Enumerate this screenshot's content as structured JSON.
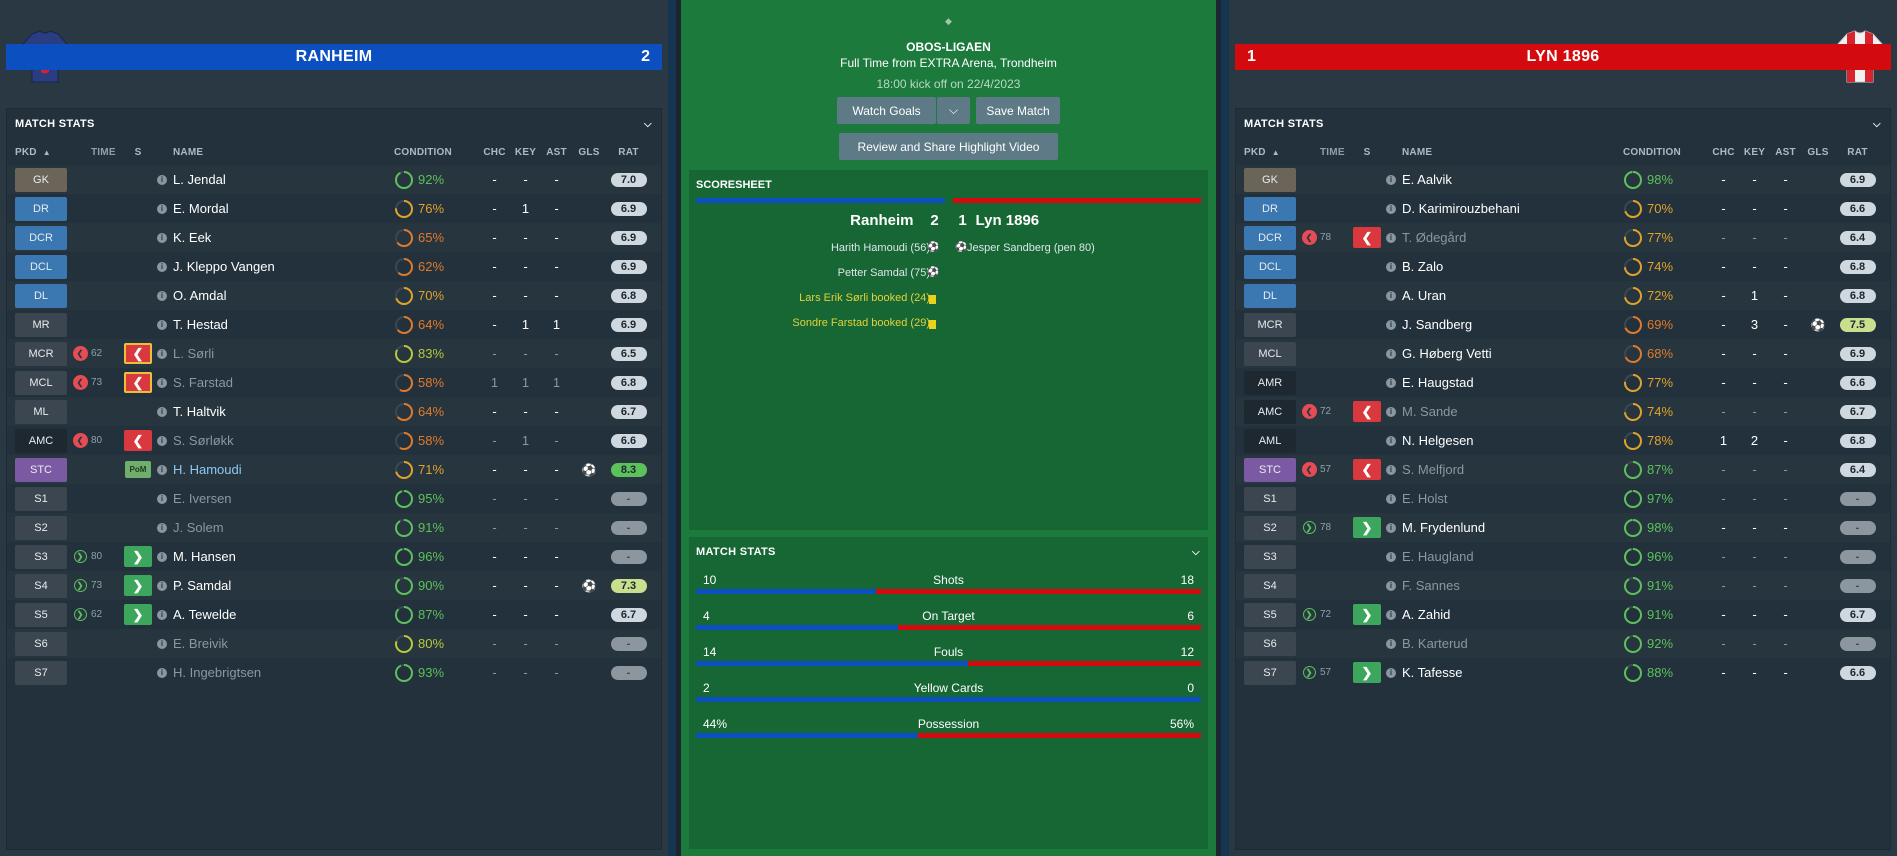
{
  "home": {
    "name": "RANHEIM",
    "score": "2",
    "panel_title": "MATCH STATS",
    "columns": {
      "pkd": "PKD",
      "time": "TIME",
      "s": "S",
      "name": "NAME",
      "condition": "CONDITION",
      "chc": "CHC",
      "key": "KEY",
      "ast": "AST",
      "gls": "GLS",
      "rat": "RAT"
    },
    "players": [
      {
        "pos": "GK",
        "pos_color": "#6b6458",
        "name": "L. Jendal",
        "cond": "92%",
        "cond_val": 92,
        "chc": "-",
        "key": "-",
        "ast": "-",
        "rat": "7.0",
        "sub": "",
        "time": "",
        "dim": false
      },
      {
        "pos": "DR",
        "pos_color": "#3b77b0",
        "name": "E. Mordal",
        "cond": "76%",
        "cond_val": 76,
        "chc": "-",
        "key": "1",
        "ast": "-",
        "rat": "6.9",
        "sub": "",
        "time": "",
        "dim": false
      },
      {
        "pos": "DCR",
        "pos_color": "#3b77b0",
        "name": "K. Eek",
        "cond": "65%",
        "cond_val": 65,
        "chc": "-",
        "key": "-",
        "ast": "-",
        "rat": "6.9",
        "sub": "",
        "time": "",
        "dim": false
      },
      {
        "pos": "DCL",
        "pos_color": "#3b77b0",
        "name": "J. Kleppo Vangen",
        "cond": "62%",
        "cond_val": 62,
        "chc": "-",
        "key": "-",
        "ast": "-",
        "rat": "6.9",
        "sub": "",
        "time": "",
        "dim": false
      },
      {
        "pos": "DL",
        "pos_color": "#3b77b0",
        "name": "O. Amdal",
        "cond": "70%",
        "cond_val": 70,
        "chc": "-",
        "key": "-",
        "ast": "-",
        "rat": "6.8",
        "sub": "",
        "time": "",
        "dim": false
      },
      {
        "pos": "MR",
        "pos_color": "#3b4650",
        "name": "T. Hestad",
        "cond": "64%",
        "cond_val": 64,
        "chc": "-",
        "key": "1",
        "ast": "1",
        "rat": "6.9",
        "sub": "",
        "time": "",
        "dim": false
      },
      {
        "pos": "MCR",
        "pos_color": "#3b4650",
        "name": "L. Sørli",
        "cond": "83%",
        "cond_val": 83,
        "chc": "-",
        "key": "-",
        "ast": "-",
        "rat": "6.5",
        "sub": "outb",
        "time": "62",
        "dim": true
      },
      {
        "pos": "MCL",
        "pos_color": "#3b4650",
        "name": "S. Farstad",
        "cond": "58%",
        "cond_val": 58,
        "chc": "1",
        "key": "1",
        "ast": "1",
        "rat": "6.8",
        "sub": "outb",
        "time": "73",
        "dim": true
      },
      {
        "pos": "ML",
        "pos_color": "#3b4650",
        "name": "T. Haltvik",
        "cond": "64%",
        "cond_val": 64,
        "chc": "-",
        "key": "-",
        "ast": "-",
        "rat": "6.7",
        "sub": "",
        "time": "",
        "dim": false
      },
      {
        "pos": "AMC",
        "pos_color": "#1e2830",
        "name": "S. Sørløkk",
        "cond": "58%",
        "cond_val": 58,
        "chc": "-",
        "key": "1",
        "ast": "-",
        "rat": "6.6",
        "sub": "out",
        "time": "80",
        "dim": true
      },
      {
        "pos": "STC",
        "pos_color": "#7b5aa3",
        "name": "H. Hamoudi",
        "cond": "71%",
        "cond_val": 71,
        "chc": "-",
        "key": "-",
        "ast": "-",
        "rat": "8.3",
        "rat_class": "high",
        "sub": "pom",
        "pom": "PoM",
        "goal": true,
        "time": "",
        "dim": false,
        "hl": true
      },
      {
        "pos": "S1",
        "pos_color": "#3b4650",
        "name": "E. Iversen",
        "cond": "95%",
        "cond_val": 95,
        "chc": "-",
        "key": "-",
        "ast": "-",
        "rat": "-",
        "rat_class": "none",
        "sub": "",
        "time": "",
        "dim": true
      },
      {
        "pos": "S2",
        "pos_color": "#3b4650",
        "name": "J. Solem",
        "cond": "91%",
        "cond_val": 91,
        "chc": "-",
        "key": "-",
        "ast": "-",
        "rat": "-",
        "rat_class": "none",
        "sub": "",
        "time": "",
        "dim": true
      },
      {
        "pos": "S3",
        "pos_color": "#3b4650",
        "name": "M. Hansen",
        "cond": "96%",
        "cond_val": 96,
        "chc": "-",
        "key": "-",
        "ast": "-",
        "rat": "-",
        "rat_class": "none",
        "sub": "in",
        "time": "80",
        "dim": false
      },
      {
        "pos": "S4",
        "pos_color": "#3b4650",
        "name": "P. Samdal",
        "cond": "90%",
        "cond_val": 90,
        "chc": "-",
        "key": "-",
        "ast": "-",
        "rat": "7.3",
        "rat_class": "med",
        "sub": "in",
        "time": "73",
        "goal": true,
        "dim": false
      },
      {
        "pos": "S5",
        "pos_color": "#3b4650",
        "name": "A. Tewelde",
        "cond": "87%",
        "cond_val": 87,
        "chc": "-",
        "key": "-",
        "ast": "-",
        "rat": "6.7",
        "sub": "in",
        "time": "62",
        "dim": false
      },
      {
        "pos": "S6",
        "pos_color": "#3b4650",
        "name": "E. Breivik",
        "cond": "80%",
        "cond_val": 80,
        "chc": "-",
        "key": "-",
        "ast": "-",
        "rat": "-",
        "rat_class": "none",
        "sub": "",
        "time": "",
        "dim": true
      },
      {
        "pos": "S7",
        "pos_color": "#3b4650",
        "name": "H. Ingebrigtsen",
        "cond": "93%",
        "cond_val": 93,
        "chc": "-",
        "key": "-",
        "ast": "-",
        "rat": "-",
        "rat_class": "none",
        "sub": "",
        "time": "",
        "dim": true
      }
    ]
  },
  "away": {
    "name": "LYN 1896",
    "score": "1",
    "panel_title": "MATCH STATS",
    "columns": {
      "pkd": "PKD",
      "time": "TIME",
      "s": "S",
      "name": "NAME",
      "condition": "CONDITION",
      "chc": "CHC",
      "key": "KEY",
      "ast": "AST",
      "gls": "GLS",
      "rat": "RAT"
    },
    "players": [
      {
        "pos": "GK",
        "pos_color": "#6b6458",
        "name": "E. Aalvik",
        "cond": "98%",
        "cond_val": 98,
        "chc": "-",
        "key": "-",
        "ast": "-",
        "rat": "6.9",
        "sub": "",
        "time": "",
        "dim": false
      },
      {
        "pos": "DR",
        "pos_color": "#3b77b0",
        "name": "D. Karimirouzbehani",
        "cond": "70%",
        "cond_val": 70,
        "chc": "-",
        "key": "-",
        "ast": "-",
        "rat": "6.6",
        "sub": "",
        "time": "",
        "dim": false
      },
      {
        "pos": "DCR",
        "pos_color": "#3b77b0",
        "name": "T. Ødegård",
        "cond": "77%",
        "cond_val": 77,
        "chc": "-",
        "key": "-",
        "ast": "-",
        "rat": "6.4",
        "sub": "out",
        "time": "78",
        "dim": true
      },
      {
        "pos": "DCL",
        "pos_color": "#3b77b0",
        "name": "B. Zalo",
        "cond": "74%",
        "cond_val": 74,
        "chc": "-",
        "key": "-",
        "ast": "-",
        "rat": "6.8",
        "sub": "",
        "time": "",
        "dim": false
      },
      {
        "pos": "DL",
        "pos_color": "#3b77b0",
        "name": "A. Uran",
        "cond": "72%",
        "cond_val": 72,
        "chc": "-",
        "key": "1",
        "ast": "-",
        "rat": "6.8",
        "sub": "",
        "time": "",
        "dim": false
      },
      {
        "pos": "MCR",
        "pos_color": "#3b4650",
        "name": "J. Sandberg",
        "cond": "69%",
        "cond_val": 69,
        "chc": "-",
        "key": "3",
        "ast": "-",
        "rat": "7.5",
        "rat_class": "med",
        "goal": true,
        "sub": "",
        "time": "",
        "dim": false
      },
      {
        "pos": "MCL",
        "pos_color": "#3b4650",
        "name": "G. Høberg Vetti",
        "cond": "68%",
        "cond_val": 68,
        "chc": "-",
        "key": "-",
        "ast": "-",
        "rat": "6.9",
        "sub": "",
        "time": "",
        "dim": false
      },
      {
        "pos": "AMR",
        "pos_color": "#1e2830",
        "name": "E. Haugstad",
        "cond": "77%",
        "cond_val": 77,
        "chc": "-",
        "key": "-",
        "ast": "-",
        "rat": "6.6",
        "sub": "",
        "time": "",
        "dim": false
      },
      {
        "pos": "AMC",
        "pos_color": "#1e2830",
        "name": "M. Sande",
        "cond": "74%",
        "cond_val": 74,
        "chc": "-",
        "key": "-",
        "ast": "-",
        "rat": "6.7",
        "sub": "out",
        "time": "72",
        "dim": true
      },
      {
        "pos": "AML",
        "pos_color": "#1e2830",
        "name": "N. Helgesen",
        "cond": "78%",
        "cond_val": 78,
        "chc": "1",
        "key": "2",
        "ast": "-",
        "rat": "6.8",
        "sub": "",
        "time": "",
        "dim": false
      },
      {
        "pos": "STC",
        "pos_color": "#7b5aa3",
        "name": "S. Melfjord",
        "cond": "87%",
        "cond_val": 87,
        "chc": "-",
        "key": "-",
        "ast": "-",
        "rat": "6.4",
        "sub": "out",
        "time": "57",
        "dim": true
      },
      {
        "pos": "S1",
        "pos_color": "#3b4650",
        "name": "E. Holst",
        "cond": "97%",
        "cond_val": 97,
        "chc": "-",
        "key": "-",
        "ast": "-",
        "rat": "-",
        "rat_class": "none",
        "sub": "",
        "time": "",
        "dim": true
      },
      {
        "pos": "S2",
        "pos_color": "#3b4650",
        "name": "M. Frydenlund",
        "cond": "98%",
        "cond_val": 98,
        "chc": "-",
        "key": "-",
        "ast": "-",
        "rat": "-",
        "rat_class": "none",
        "sub": "in",
        "time": "78",
        "dim": false
      },
      {
        "pos": "S3",
        "pos_color": "#3b4650",
        "name": "E. Haugland",
        "cond": "96%",
        "cond_val": 96,
        "chc": "-",
        "key": "-",
        "ast": "-",
        "rat": "-",
        "rat_class": "none",
        "sub": "",
        "time": "",
        "dim": true
      },
      {
        "pos": "S4",
        "pos_color": "#3b4650",
        "name": "F. Sannes",
        "cond": "91%",
        "cond_val": 91,
        "chc": "-",
        "key": "-",
        "ast": "-",
        "rat": "-",
        "rat_class": "none",
        "sub": "",
        "time": "",
        "dim": true
      },
      {
        "pos": "S5",
        "pos_color": "#3b4650",
        "name": "A. Zahid",
        "cond": "91%",
        "cond_val": 91,
        "chc": "-",
        "key": "-",
        "ast": "-",
        "rat": "6.7",
        "sub": "in",
        "time": "72",
        "dim": false
      },
      {
        "pos": "S6",
        "pos_color": "#3b4650",
        "name": "B. Karterud",
        "cond": "92%",
        "cond_val": 92,
        "chc": "-",
        "key": "-",
        "ast": "-",
        "rat": "-",
        "rat_class": "none",
        "sub": "",
        "time": "",
        "dim": true
      },
      {
        "pos": "S7",
        "pos_color": "#3b4650",
        "name": "K. Tafesse",
        "cond": "88%",
        "cond_val": 88,
        "chc": "-",
        "key": "-",
        "ast": "-",
        "rat": "6.6",
        "sub": "in",
        "time": "57",
        "dim": false
      }
    ]
  },
  "match": {
    "competition": "OBOS-LIGAEN",
    "venue": "Full Time from EXTRA Arena, Trondheim",
    "kickoff": "18:00 kick off on 22/4/2023",
    "watch_goals": "Watch Goals",
    "save_match": "Save Match",
    "review": "Review and Share Highlight Video",
    "scoresheet_title": "SCORESHEET",
    "home_name": "Ranheim",
    "home_score": "2",
    "away_score": "1",
    "away_name": "Lyn 1896",
    "home_events": [
      {
        "text": "Harith Hamoudi (56)",
        "type": "goal"
      },
      {
        "text": "Petter Samdal (75)",
        "type": "goal"
      },
      {
        "text": "Lars Erik Sørli booked (24)",
        "type": "yellow"
      },
      {
        "text": "Sondre Farstad booked (29)",
        "type": "yellow"
      }
    ],
    "away_events": [
      {
        "text": "Jesper Sandberg (pen 80)",
        "type": "goal"
      }
    ],
    "stats_title": "MATCH STATS",
    "stats": [
      {
        "label": "Shots",
        "home": "10",
        "away": "18",
        "home_share": 0.357
      },
      {
        "label": "On Target",
        "home": "4",
        "away": "6",
        "home_share": 0.4
      },
      {
        "label": "Fouls",
        "home": "14",
        "away": "12",
        "home_share": 0.538
      },
      {
        "label": "Yellow Cards",
        "home": "2",
        "away": "0",
        "home_share": 1.0
      },
      {
        "label": "Possession",
        "home": "44%",
        "away": "56%",
        "home_share": 0.44
      }
    ]
  },
  "colors": {
    "home": "#0c4fc1",
    "away": "#d30b0e",
    "pitch": "#1c7a3c"
  }
}
